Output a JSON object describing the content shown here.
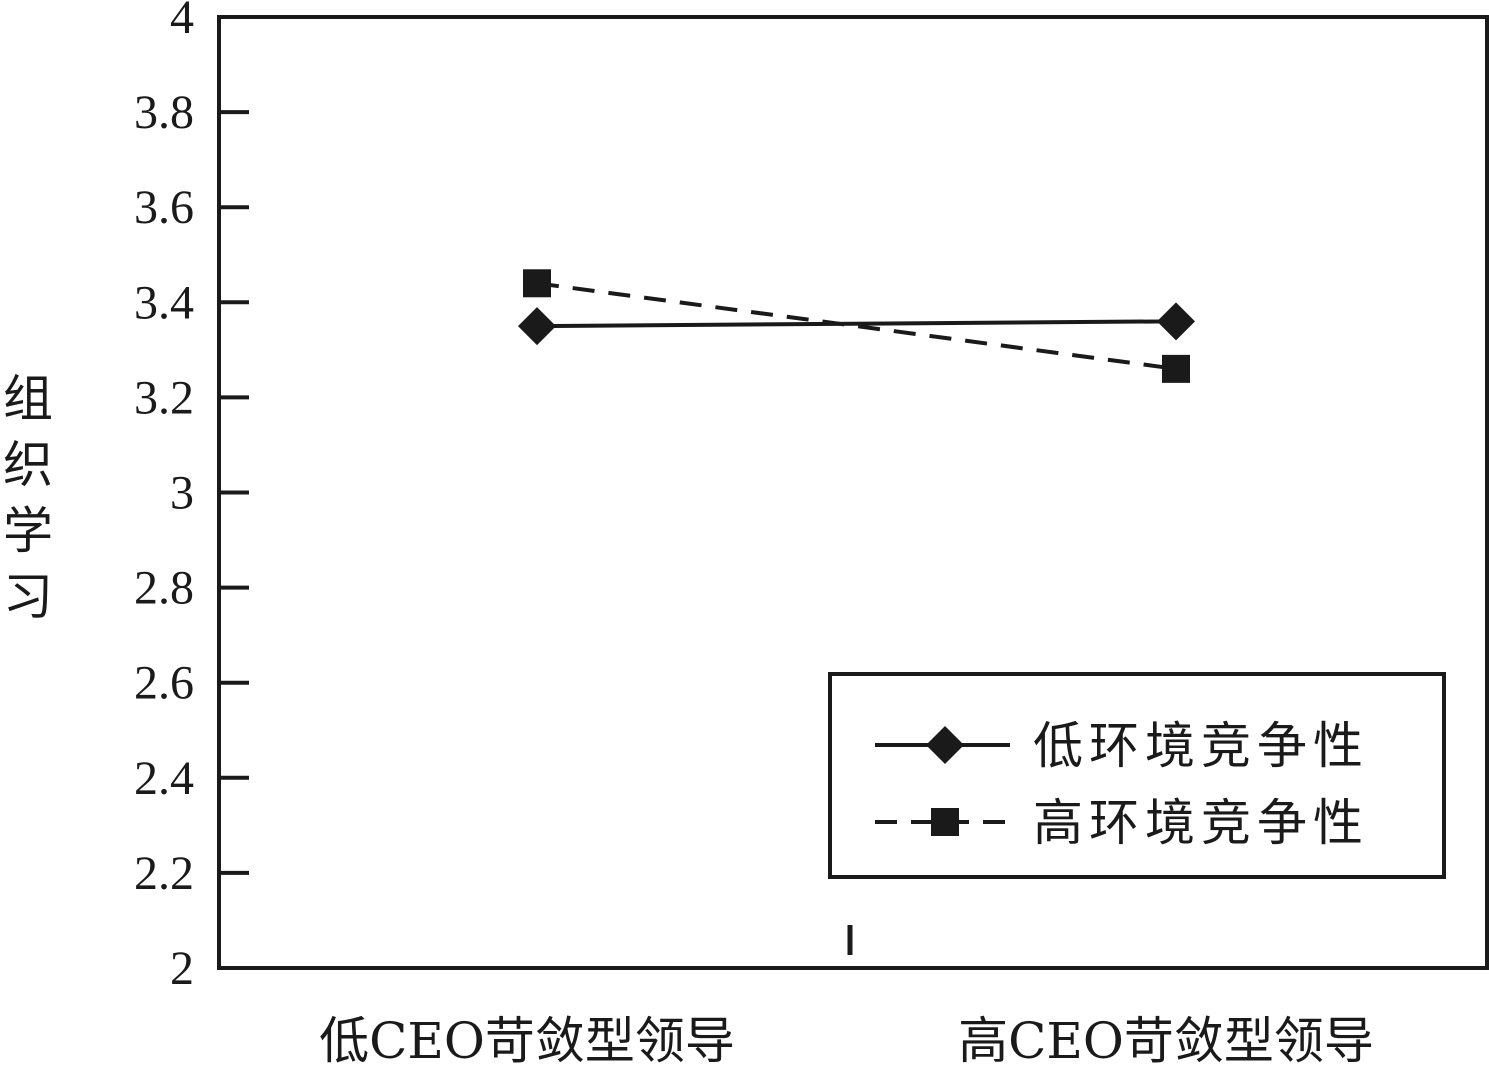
{
  "chart_data": {
    "type": "line",
    "categories": [
      "低CEO苛敛型领导",
      "高CEO苛敛型领导"
    ],
    "series": [
      {
        "name": "低环境竞争性",
        "marker": "diamond",
        "line": "solid",
        "values": [
          3.35,
          3.36
        ]
      },
      {
        "name": "高环境竞争性",
        "marker": "square",
        "line": "dashed",
        "values": [
          3.44,
          3.26
        ]
      }
    ],
    "title": "",
    "xlabel": "",
    "ylabel": "组织学习",
    "ylim": [
      2,
      4
    ],
    "yticks": [
      2,
      2.2,
      2.4,
      2.6,
      2.8,
      3,
      3.2,
      3.4,
      3.6,
      3.8,
      4
    ],
    "ytick_labels": [
      "2",
      "2.2",
      "2.4",
      "2.6",
      "2.8",
      "3",
      "3.2",
      "3.4",
      "3.6",
      "3.8",
      "4"
    ],
    "grid": false,
    "legend_position": "bottom-right",
    "color": "#1a1a1a"
  }
}
